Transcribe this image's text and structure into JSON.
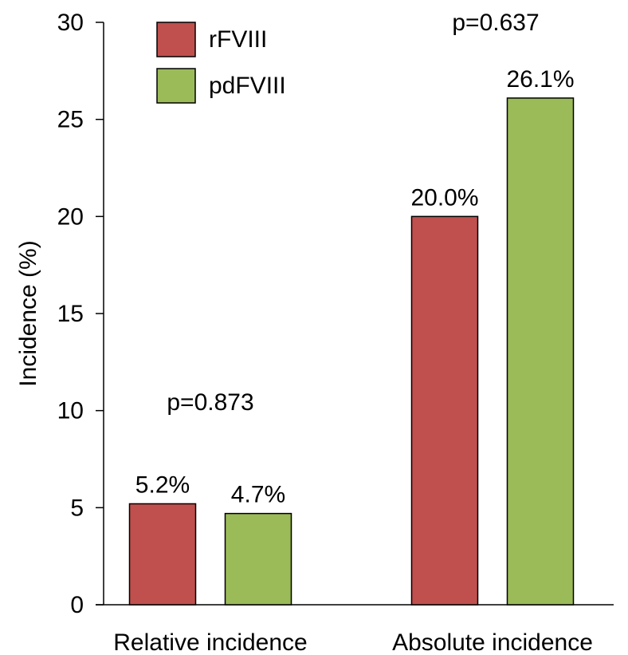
{
  "chart_data": {
    "type": "bar",
    "categories": [
      "Relative incidence",
      "Absolute incidence"
    ],
    "series": [
      {
        "name": "rFVIII",
        "values": [
          5.2,
          20.0
        ],
        "labels": [
          "5.2%",
          "20.0%"
        ],
        "color": "#c0504d"
      },
      {
        "name": "pdFVIII",
        "values": [
          4.7,
          26.1
        ],
        "labels": [
          "4.7%",
          "26.1%"
        ],
        "color": "#9bbb59"
      }
    ],
    "annotations": [
      "p=0.873",
      "p=0.637"
    ],
    "title": "",
    "xlabel": "",
    "ylabel": "Incidence (%)",
    "ylim": [
      0,
      30
    ],
    "yticks": [
      "0",
      "5",
      "10",
      "15",
      "20",
      "25",
      "30"
    ],
    "grid": false,
    "legend": "top-left"
  }
}
